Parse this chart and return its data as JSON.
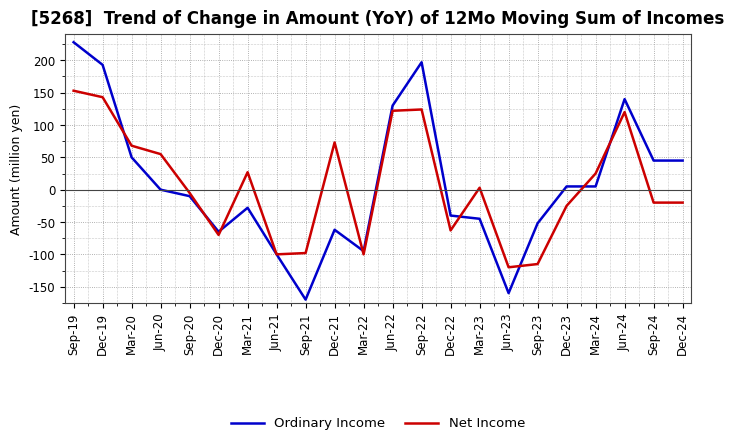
{
  "title": "[5268]  Trend of Change in Amount (YoY) of 12Mo Moving Sum of Incomes",
  "ylabel": "Amount (million yen)",
  "x_labels": [
    "Sep-19",
    "Dec-19",
    "Mar-20",
    "Jun-20",
    "Sep-20",
    "Dec-20",
    "Mar-21",
    "Jun-21",
    "Sep-21",
    "Dec-21",
    "Mar-22",
    "Jun-22",
    "Sep-22",
    "Dec-22",
    "Mar-23",
    "Jun-23",
    "Sep-23",
    "Dec-23",
    "Mar-24",
    "Jun-24",
    "Sep-24",
    "Dec-24"
  ],
  "ordinary_income": [
    228,
    193,
    50,
    0,
    -10,
    -65,
    -28,
    -100,
    -170,
    -62,
    -95,
    130,
    197,
    -40,
    -45,
    -160,
    -52,
    5,
    5,
    140,
    45,
    45
  ],
  "net_income": [
    153,
    143,
    68,
    55,
    -5,
    -70,
    27,
    -100,
    -98,
    73,
    -100,
    122,
    124,
    -63,
    3,
    -120,
    -115,
    -25,
    25,
    120,
    -20,
    -20
  ],
  "ordinary_color": "#0000cc",
  "net_color": "#cc0000",
  "background_color": "#ffffff",
  "grid_color": "#999999",
  "ylim": [
    -175,
    240
  ],
  "yticks": [
    -150,
    -100,
    -50,
    0,
    50,
    100,
    150,
    200
  ],
  "legend_ordinary": "Ordinary Income",
  "legend_net": "Net Income",
  "line_width": 1.8,
  "title_fontsize": 12,
  "axis_fontsize": 9,
  "tick_fontsize": 8.5
}
